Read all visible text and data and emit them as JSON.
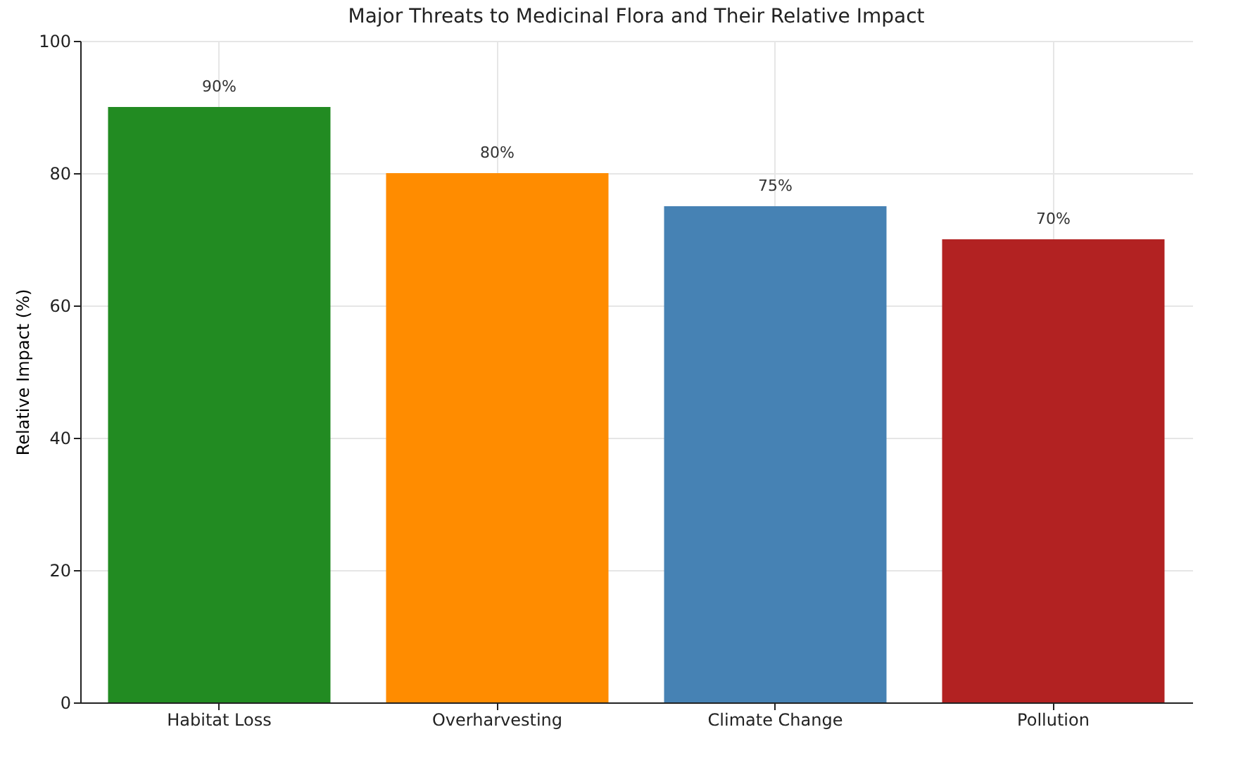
{
  "chart_data": {
    "type": "bar",
    "title": "Major Threats to Medicinal Flora and Their Relative Impact",
    "ylabel": "Relative Impact (%)",
    "categories": [
      "Habitat Loss",
      "Overharvesting",
      "Climate Change",
      "Pollution"
    ],
    "values": [
      90,
      80,
      75,
      70
    ],
    "colors": [
      "#228b22",
      "#ff8c00",
      "#4682b4",
      "#b22222"
    ],
    "value_labels": [
      "90%",
      "80%",
      "75%",
      "70%"
    ],
    "ylim": [
      0,
      100
    ],
    "yticks": [
      0,
      20,
      40,
      60,
      80,
      100
    ],
    "grid": true,
    "legend": false
  }
}
